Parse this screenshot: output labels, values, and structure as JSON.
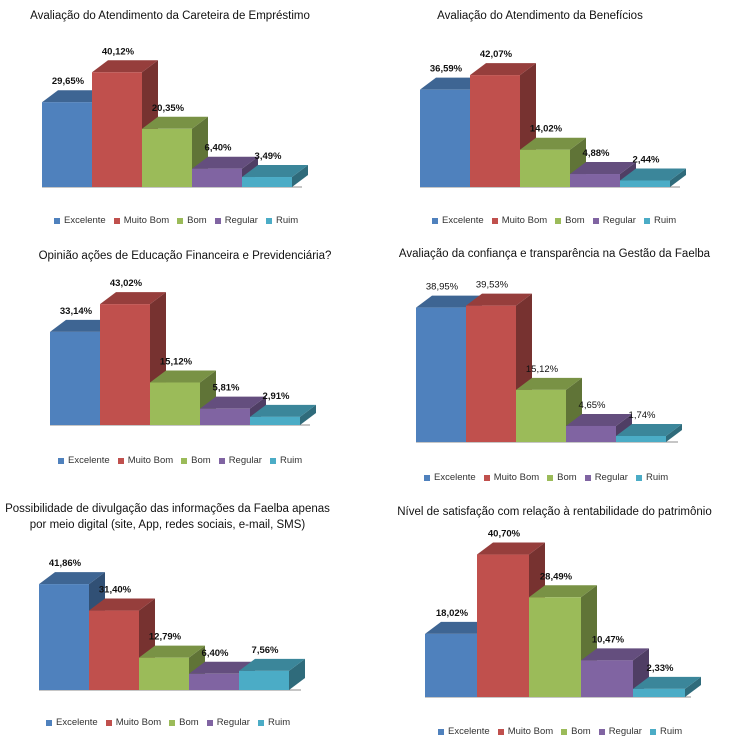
{
  "colors": {
    "Excelente": "#4F81BD",
    "Muito Bom": "#C0504D",
    "Bom": "#9BBB59",
    "Regular": "#8064A2",
    "Ruim": "#4BACC6"
  },
  "chart_data": [
    {
      "type": "bar",
      "title": "Avaliação do Atendimento da Careteira de Empréstimo",
      "categories": [
        "Excelente",
        "Muito Bom",
        "Bom",
        "Regular",
        "Ruim"
      ],
      "values": [
        29.65,
        40.12,
        20.35,
        6.4,
        3.49
      ],
      "labels": [
        "29,65%",
        "40,12%",
        "20,35%",
        "6,40%",
        "3,49%"
      ]
    },
    {
      "type": "bar",
      "title": "Avaliação do Atendimento da Benefícios",
      "categories": [
        "Excelente",
        "Muito Bom",
        "Bom",
        "Regular",
        "Ruim"
      ],
      "values": [
        36.59,
        42.07,
        14.02,
        4.88,
        2.44
      ],
      "labels": [
        "36,59%",
        "42,07%",
        "14,02%",
        "4,88%",
        "2,44%"
      ]
    },
    {
      "type": "bar",
      "title": "Opinião ações de Educação Financeira e Previdenciária?",
      "categories": [
        "Excelente",
        "Muito Bom",
        "Bom",
        "Regular",
        "Ruim"
      ],
      "values": [
        33.14,
        43.02,
        15.12,
        5.81,
        2.91
      ],
      "labels": [
        "33,14%",
        "43,02%",
        "15,12%",
        "5,81%",
        "2,91%"
      ]
    },
    {
      "type": "bar",
      "title": "Avaliação da confiança e transparência na Gestão da Faelba",
      "categories": [
        "Excelente",
        "Muito Bom",
        "Bom",
        "Regular",
        "Ruim"
      ],
      "values": [
        38.95,
        39.53,
        15.12,
        4.65,
        1.74
      ],
      "labels": [
        "38,95%",
        "39,53%",
        "15,12%",
        "4,65%",
        "1,74%"
      ]
    },
    {
      "type": "bar",
      "title": "Possibilidade de divulgação das informações da Faelba apenas por meio digital (site, App, redes sociais, e-mail, SMS)",
      "categories": [
        "Excelente",
        "Muito Bom",
        "Bom",
        "Regular",
        "Ruim"
      ],
      "values": [
        41.86,
        31.4,
        12.79,
        6.4,
        7.56
      ],
      "labels": [
        "41,86%",
        "31,40%",
        "12,79%",
        "6,40%",
        "7,56%"
      ]
    },
    {
      "type": "bar",
      "title": "Nível de satisfação com relação à rentabilidade do patrimônio",
      "categories": [
        "Excelente",
        "Muito Bom",
        "Bom",
        "Regular",
        "Ruim"
      ],
      "values": [
        18.02,
        40.7,
        28.49,
        10.47,
        2.33
      ],
      "labels": [
        "18,02%",
        "40,70%",
        "28,49%",
        "10,47%",
        "2,33%"
      ]
    }
  ]
}
